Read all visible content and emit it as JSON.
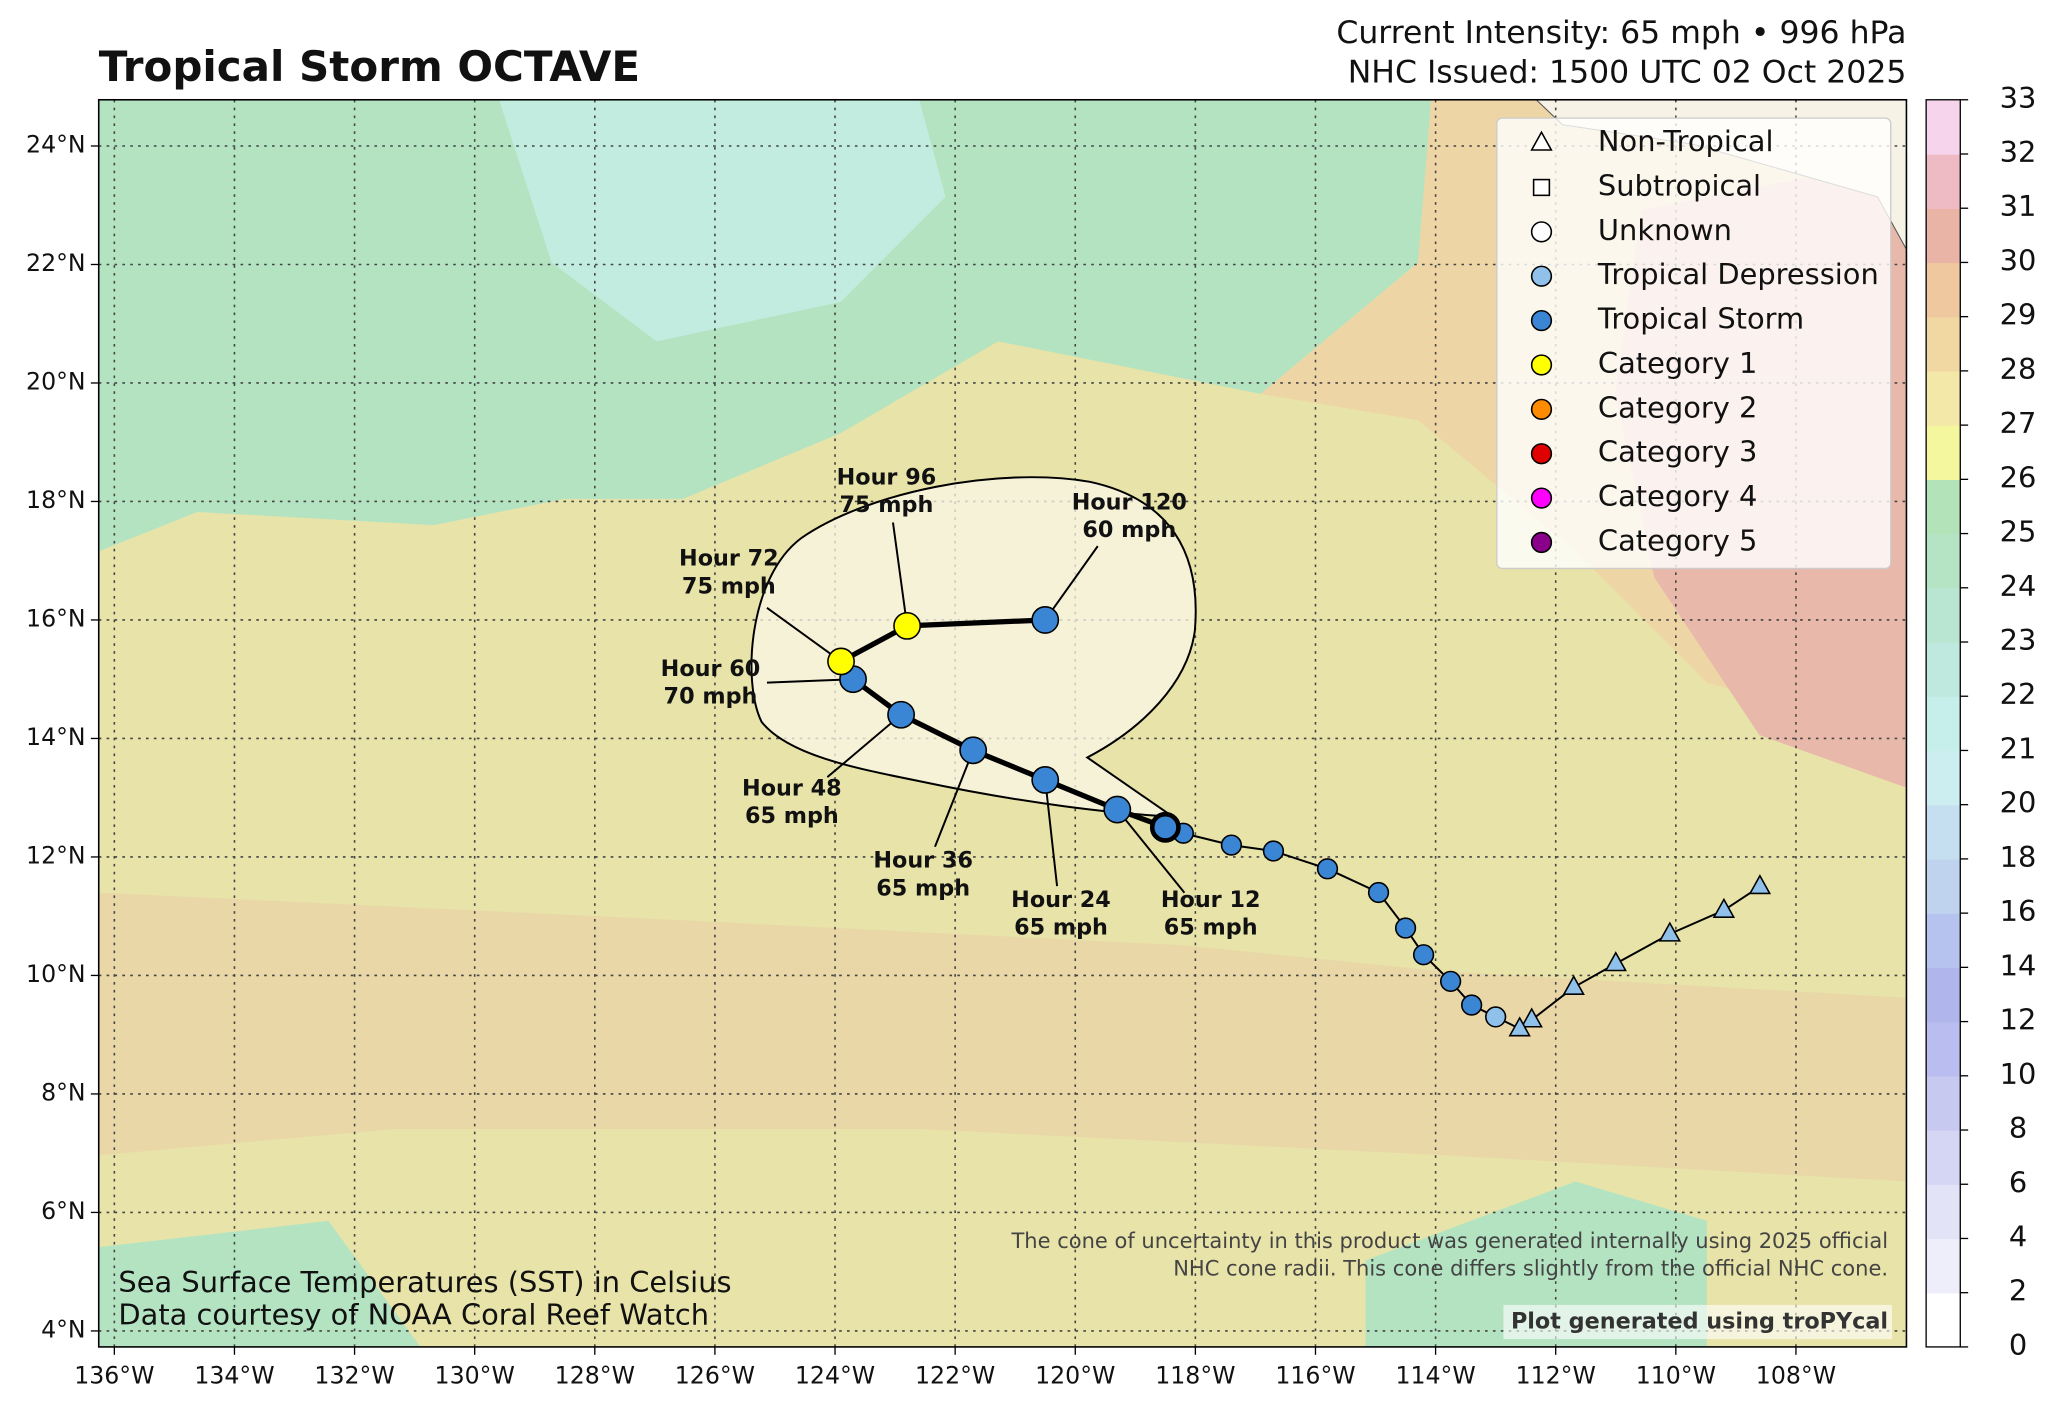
{
  "header": {
    "title": "Tropical Storm OCTAVE",
    "intensity": "Current Intensity: 65 mph • 996 hPa",
    "issued": "NHC Issued: 1500 UTC 02 Oct 2025"
  },
  "map": {
    "xlim": [
      -136.26,
      -106.16
    ],
    "ylim": [
      3.73,
      24.78
    ],
    "xticks": [
      {
        "value": -136,
        "label": "136°W"
      },
      {
        "value": -134,
        "label": "134°W"
      },
      {
        "value": -132,
        "label": "132°W"
      },
      {
        "value": -130,
        "label": "130°W"
      },
      {
        "value": -128,
        "label": "128°W"
      },
      {
        "value": -126,
        "label": "126°W"
      },
      {
        "value": -124,
        "label": "124°W"
      },
      {
        "value": -122,
        "label": "122°W"
      },
      {
        "value": -120,
        "label": "120°W"
      },
      {
        "value": -118,
        "label": "118°W"
      },
      {
        "value": -116,
        "label": "116°W"
      },
      {
        "value": -114,
        "label": "114°W"
      },
      {
        "value": -112,
        "label": "112°W"
      },
      {
        "value": -110,
        "label": "110°W"
      },
      {
        "value": -108,
        "label": "108°W"
      }
    ],
    "yticks": [
      {
        "value": 4,
        "label": "4°N"
      },
      {
        "value": 6,
        "label": "6°N"
      },
      {
        "value": 8,
        "label": "8°N"
      },
      {
        "value": 10,
        "label": "10°N"
      },
      {
        "value": 12,
        "label": "12°N"
      },
      {
        "value": 14,
        "label": "14°N"
      },
      {
        "value": 16,
        "label": "16°N"
      },
      {
        "value": 18,
        "label": "18°N"
      },
      {
        "value": 20,
        "label": "20°N"
      },
      {
        "value": 22,
        "label": "22°N"
      },
      {
        "value": 24,
        "label": "24°N"
      }
    ],
    "grid": true,
    "track": [
      {
        "lon": -108.6,
        "lat": 11.5,
        "marker": "triangle",
        "color": "#8fc1ea"
      },
      {
        "lon": -109.2,
        "lat": 11.1,
        "marker": "triangle",
        "color": "#8fc1ea"
      },
      {
        "lon": -110.1,
        "lat": 10.7,
        "marker": "triangle",
        "color": "#8fc1ea"
      },
      {
        "lon": -111.0,
        "lat": 10.2,
        "marker": "triangle",
        "color": "#8fc1ea"
      },
      {
        "lon": -111.7,
        "lat": 9.8,
        "marker": "triangle",
        "color": "#8fc1ea"
      },
      {
        "lon": -112.4,
        "lat": 9.25,
        "marker": "triangle",
        "color": "#8fc1ea"
      },
      {
        "lon": -112.6,
        "lat": 9.1,
        "marker": "triangle",
        "color": "#8fc1ea"
      },
      {
        "lon": -113.0,
        "lat": 9.3,
        "marker": "circle",
        "color": "#8fc1ea"
      },
      {
        "lon": -113.4,
        "lat": 9.5,
        "marker": "circle",
        "color": "#3a86d4"
      },
      {
        "lon": -113.75,
        "lat": 9.9,
        "marker": "circle",
        "color": "#3a86d4"
      },
      {
        "lon": -114.2,
        "lat": 10.35,
        "marker": "circle",
        "color": "#3a86d4"
      },
      {
        "lon": -114.5,
        "lat": 10.8,
        "marker": "circle",
        "color": "#3a86d4"
      },
      {
        "lon": -114.95,
        "lat": 11.4,
        "marker": "circle",
        "color": "#3a86d4"
      },
      {
        "lon": -115.8,
        "lat": 11.8,
        "marker": "circle",
        "color": "#3a86d4"
      },
      {
        "lon": -116.7,
        "lat": 12.1,
        "marker": "circle",
        "color": "#3a86d4"
      },
      {
        "lon": -117.4,
        "lat": 12.2,
        "marker": "circle",
        "color": "#3a86d4"
      },
      {
        "lon": -118.2,
        "lat": 12.4,
        "marker": "circle",
        "color": "#3a86d4"
      },
      {
        "lon": -118.5,
        "lat": 12.5,
        "marker": "circle",
        "color": "#3a86d4"
      }
    ],
    "forecast": [
      {
        "hour": "Hour 12",
        "wind": "65 mph",
        "lon": -119.3,
        "lat": 12.8,
        "color": "#3a86d4"
      },
      {
        "hour": "Hour 24",
        "wind": "65 mph",
        "lon": -120.5,
        "lat": 13.3,
        "color": "#3a86d4"
      },
      {
        "hour": "Hour 36",
        "wind": "65 mph",
        "lon": -121.7,
        "lat": 13.8,
        "color": "#3a86d4"
      },
      {
        "hour": "Hour 48",
        "wind": "65 mph",
        "lon": -122.9,
        "lat": 14.4,
        "color": "#3a86d4"
      },
      {
        "hour": "Hour 60",
        "wind": "70 mph",
        "lon": -123.7,
        "lat": 15.0,
        "color": "#3a86d4"
      },
      {
        "hour": "Hour 72",
        "wind": "75 mph",
        "lon": -123.9,
        "lat": 15.3,
        "color": "#ffff00"
      },
      {
        "hour": "Hour 96",
        "wind": "75 mph",
        "lon": -122.8,
        "lat": 15.9,
        "color": "#ffff00"
      },
      {
        "hour": "Hour 120",
        "wind": "60 mph",
        "lon": -120.5,
        "lat": 16.0,
        "color": "#3a86d4"
      }
    ]
  },
  "legend": [
    {
      "name": "Non-Tropical",
      "marker": "triangle",
      "color": "#ffffff"
    },
    {
      "name": "Subtropical",
      "marker": "square",
      "color": "#ffffff"
    },
    {
      "name": "Unknown",
      "marker": "circle",
      "color": "#ffffff"
    },
    {
      "name": "Tropical Depression",
      "marker": "circle",
      "color": "#8fc1ea"
    },
    {
      "name": "Tropical Storm",
      "marker": "circle",
      "color": "#3a86d4"
    },
    {
      "name": "Category 1",
      "marker": "circle",
      "color": "#ffff00"
    },
    {
      "name": "Category 2",
      "marker": "circle",
      "color": "#ff8c00"
    },
    {
      "name": "Category 3",
      "marker": "circle",
      "color": "#e00000"
    },
    {
      "name": "Category 4",
      "marker": "circle",
      "color": "#ff00ff"
    },
    {
      "name": "Category 5",
      "marker": "circle",
      "color": "#8b008b"
    }
  ],
  "colorbar": {
    "levels": [
      0,
      2,
      4,
      6,
      8,
      10,
      12,
      14,
      16,
      18,
      20,
      21,
      22,
      23,
      24,
      25,
      26,
      27,
      28,
      29,
      30,
      31,
      32,
      33
    ],
    "colors": [
      "#ffffff",
      "#eeeefa",
      "#e3e3f7",
      "#d5d6f4",
      "#c8c9f1",
      "#b9bdef",
      "#b0b5ec",
      "#b6c3ee",
      "#bfd3ef",
      "#c6dff0",
      "#cdeef0",
      "#c6eeea",
      "#bfe9df",
      "#b8e6d2",
      "#b5e4c4",
      "#b3e3b9",
      "#f5f79f",
      "#f3e8a7",
      "#f1d8a3",
      "#efc8a0",
      "#e9b4a6",
      "#eebbc4",
      "#f6d5ec"
    ]
  },
  "notes": {
    "cone_1": "The cone of uncertainty in this product was generated internally using 2025 official",
    "cone_2": "NHC cone radii. This cone differs slightly from the official NHC cone.",
    "credit": "Plot generated using troPYcal",
    "sst_1": "Sea Surface Temperatures (SST) in Celsius",
    "sst_2": "Data courtesy of NOAA Coral Reef Watch"
  }
}
